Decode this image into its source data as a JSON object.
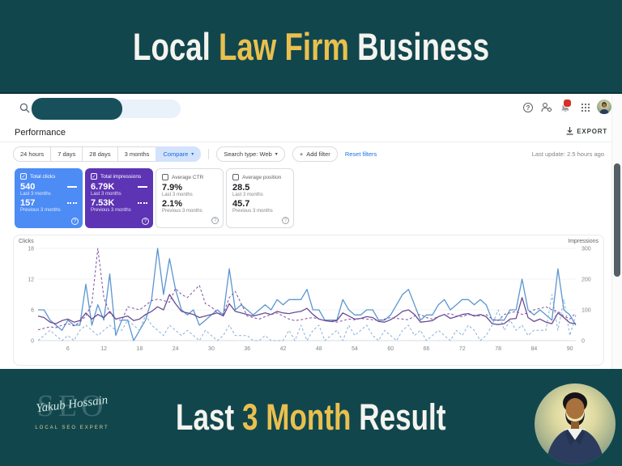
{
  "theme": {
    "teal": "#12464d",
    "gold": "#e9c04e",
    "link_blue": "#1a73e8",
    "scrollbar_thumb": "#565e66"
  },
  "icons": {
    "chevron": "▾",
    "question": "?",
    "check": "✓",
    "plus": "+"
  },
  "banner_top": {
    "part1": "Local ",
    "part2": "Law Firm",
    "part3": " Business"
  },
  "header": {
    "title": "Performance",
    "export_label": "EXPORT"
  },
  "filters": {
    "date_buttons": [
      "24 hours",
      "7 days",
      "28 days",
      "3 months"
    ],
    "compare_label": "Compare",
    "search_type_label": "Search type: Web",
    "add_filter_label": "Add filter",
    "reset_label": "Reset filters",
    "last_update": "Last update: 2.5 hours ago"
  },
  "cards": [
    {
      "label": "Total clicks",
      "value_current": "540",
      "period_current": "Last 3 months",
      "value_previous": "157",
      "period_previous": "Previous 3 months",
      "checked": true,
      "bg": "#4d8bf5"
    },
    {
      "label": "Total impressions",
      "value_current": "6.79K",
      "period_current": "Last 3 months",
      "value_previous": "7.53K",
      "period_previous": "Previous 3 months",
      "checked": true,
      "bg": "#5d34b4"
    },
    {
      "label": "Average CTR",
      "value_current": "7.9%",
      "period_current": "Last 3 months",
      "value_previous": "2.1%",
      "period_previous": "Previous 3 months",
      "checked": false,
      "bg": ""
    },
    {
      "label": "Average position",
      "value_current": "28.5",
      "period_current": "Last 3 months",
      "value_previous": "45.7",
      "period_previous": "Previous 3 months",
      "checked": false,
      "bg": ""
    }
  ],
  "chart_data": {
    "type": "line",
    "x_count": 91,
    "x_ticks": [
      6,
      12,
      18,
      24,
      30,
      36,
      42,
      48,
      54,
      60,
      66,
      72,
      78,
      84,
      90
    ],
    "y_left": {
      "label": "Clicks",
      "max": 18,
      "ticks": [
        0,
        6,
        12,
        18
      ]
    },
    "y_right": {
      "label": "Impressions",
      "max": 300,
      "ticks": [
        0,
        100,
        200,
        300
      ]
    },
    "grid": true,
    "series": [
      {
        "name": "Clicks - Last 3 months",
        "axis": "left",
        "color": "#5b96cf",
        "dashed": false,
        "values": [
          6,
          6,
          4,
          3,
          2,
          4,
          3,
          3,
          11,
          3,
          7,
          4,
          13,
          1,
          4,
          4,
          0,
          2,
          4,
          8,
          18,
          9,
          16,
          10,
          6,
          5,
          6,
          3,
          4,
          5,
          6,
          5,
          14,
          6,
          7,
          6,
          5,
          6,
          7,
          6,
          8,
          7,
          8,
          8,
          8,
          10,
          6,
          6,
          4,
          4,
          4,
          8,
          6,
          5,
          5,
          6,
          6,
          4,
          4,
          5,
          7,
          9,
          10,
          7,
          4,
          5,
          5,
          7,
          8,
          6,
          7,
          8,
          8,
          7,
          8,
          7,
          4,
          4,
          4,
          6,
          6,
          12,
          6,
          5,
          6,
          5,
          4,
          14,
          6,
          5,
          3
        ]
      },
      {
        "name": "Clicks - Previous 3 months",
        "axis": "left",
        "color": "#8ab0d9",
        "dashed": true,
        "values": [
          0,
          1,
          2,
          1,
          0,
          1,
          0,
          2,
          3,
          2,
          1,
          2,
          3,
          2,
          2,
          4,
          3,
          2,
          5,
          3,
          2,
          1,
          3,
          2,
          1,
          2,
          1,
          0,
          2,
          1,
          0,
          1,
          3,
          1,
          1,
          1,
          0,
          0,
          1,
          0,
          0,
          0,
          2,
          0,
          3,
          0,
          2,
          3,
          0,
          1,
          2,
          0,
          3,
          1,
          2,
          3,
          1,
          0,
          2,
          1,
          0,
          2,
          3,
          1,
          2,
          0,
          1,
          2,
          1,
          0,
          2,
          1,
          3,
          2,
          0,
          1,
          3,
          6,
          2,
          4,
          2,
          3,
          1,
          2,
          2,
          2,
          9,
          2,
          8,
          1,
          5
        ]
      },
      {
        "name": "Impressions - Last 3 months",
        "axis": "right",
        "color": "#6a4c93",
        "dashed": false,
        "values": [
          80,
          75,
          60,
          55,
          65,
          70,
          60,
          65,
          90,
          70,
          85,
          75,
          95,
          70,
          75,
          80,
          65,
          70,
          85,
          95,
          110,
          100,
          150,
          120,
          95,
          90,
          85,
          75,
          80,
          85,
          90,
          80,
          120,
          95,
          90,
          85,
          80,
          85,
          90,
          85,
          95,
          90,
          88,
          92,
          95,
          105,
          85,
          70,
          65,
          62,
          65,
          90,
          80,
          70,
          72,
          78,
          75,
          62,
          60,
          68,
          80,
          95,
          100,
          85,
          60,
          62,
          65,
          78,
          85,
          72,
          78,
          85,
          88,
          80,
          85,
          78,
          55,
          52,
          55,
          70,
          72,
          140,
          75,
          62,
          70,
          60,
          55,
          90,
          75,
          58,
          55
        ]
      },
      {
        "name": "Impressions - Previous 3 months",
        "axis": "right",
        "color": "#7d4fa0",
        "dashed": true,
        "values": [
          35,
          40,
          45,
          42,
          50,
          55,
          48,
          60,
          80,
          120,
          300,
          140,
          90,
          70,
          65,
          110,
          105,
          100,
          115,
          130,
          135,
          130,
          125,
          170,
          150,
          140,
          160,
          180,
          120,
          110,
          90,
          85,
          140,
          160,
          120,
          80,
          75,
          70,
          78,
          85,
          90,
          80,
          70,
          65,
          68,
          72,
          75,
          70,
          65,
          62,
          60,
          65,
          70,
          68,
          72,
          70,
          68,
          65,
          70,
          75,
          72,
          70,
          68,
          80,
          85,
          75,
          70,
          78,
          85,
          88,
          80,
          78,
          85,
          82,
          80,
          85,
          70,
          65,
          85,
          90,
          95,
          85,
          90,
          100,
          105,
          110,
          100,
          95,
          80,
          70,
          90
        ]
      }
    ]
  },
  "banner_bottom": {
    "part1": "Last ",
    "part2": "3 Month",
    "part3": " Result",
    "logo_monogram": "SEO",
    "logo_signature": "Yakub Hossain",
    "logo_subtitle": "LOCAL SEO EXPERT"
  }
}
